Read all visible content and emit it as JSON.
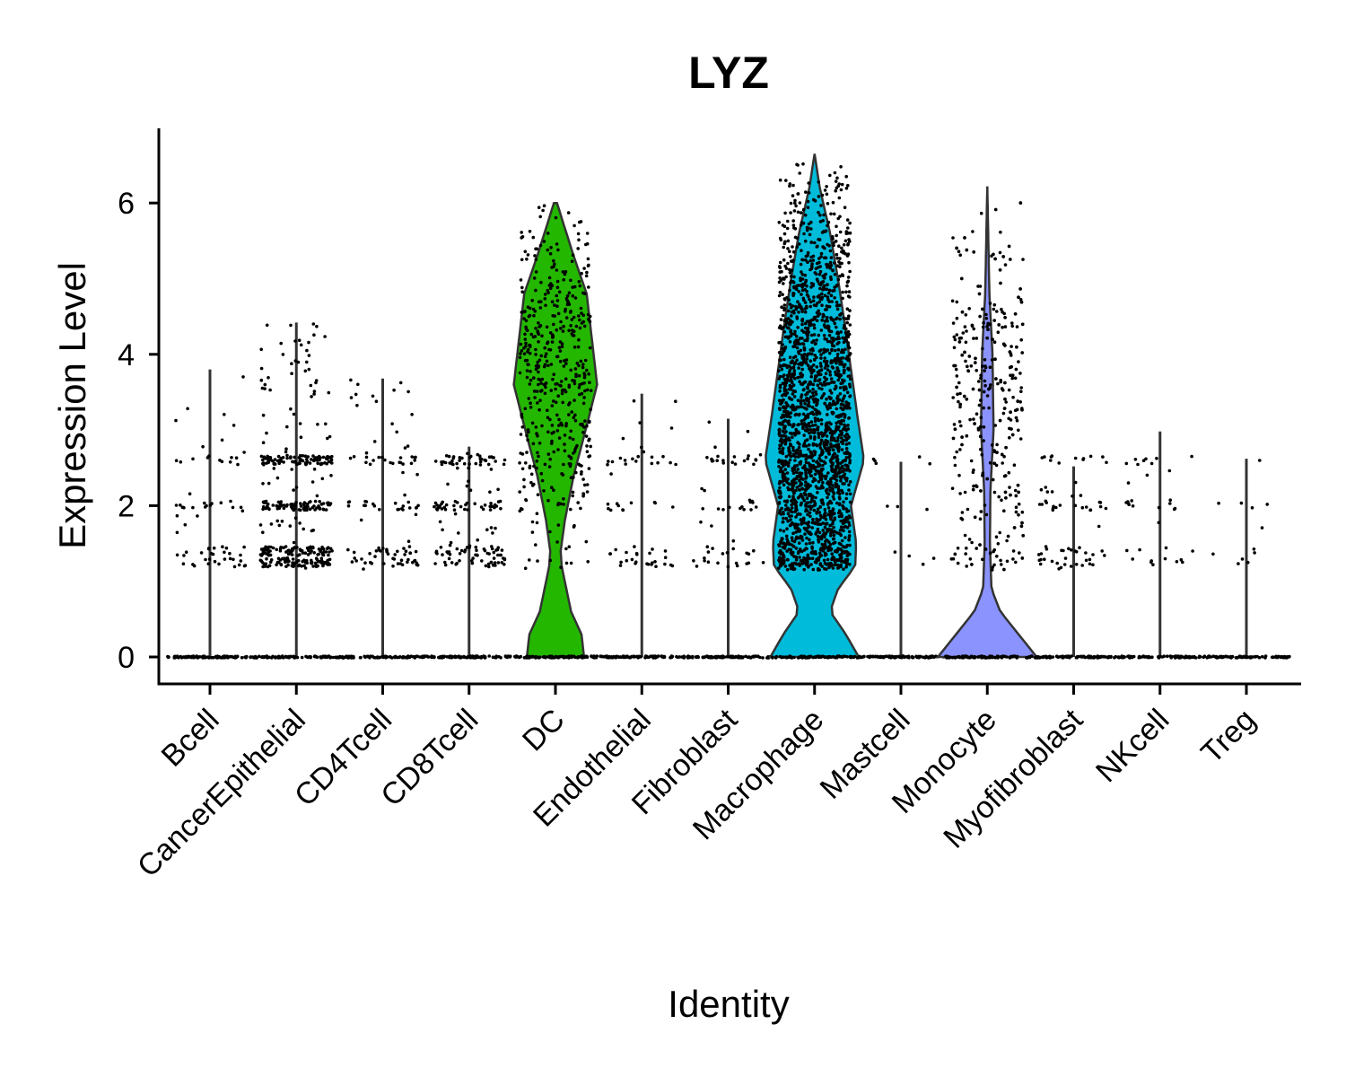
{
  "chart_data": {
    "type": "violin",
    "title": "LYZ",
    "xlabel": "Identity",
    "ylabel": "Expression Level",
    "ylim": [
      -0.35,
      7.0
    ],
    "yticks": [
      0,
      2,
      4,
      6
    ],
    "grid": false,
    "legend": "none",
    "categories": [
      "Bcell",
      "CancerEpithelial",
      "CD4Tcell",
      "CD8Tcell",
      "DC",
      "Endothelial",
      "Fibroblast",
      "Macrophage",
      "Mastcell",
      "Monocyte",
      "Myofibroblast",
      "NKcell",
      "Treg"
    ],
    "series": [
      {
        "category": "Bcell",
        "color": "#F8766D",
        "max": 3.8,
        "points_nonzero": 70
      },
      {
        "category": "CancerEpithelial",
        "color": "#E18A00",
        "max": 4.42,
        "points_nonzero": 420
      },
      {
        "category": "CD4Tcell",
        "color": "#BE9C00",
        "max": 3.68,
        "points_nonzero": 110
      },
      {
        "category": "CD8Tcell",
        "color": "#8CAB00",
        "max": 2.78,
        "points_nonzero": 160
      },
      {
        "category": "DC",
        "color": "#24B700",
        "max": 6.0,
        "points_nonzero": 480,
        "profile": [
          [
            0,
            0.55
          ],
          [
            0.3,
            0.5
          ],
          [
            0.6,
            0.3
          ],
          [
            1.2,
            0.12
          ],
          [
            1.4,
            0.1
          ],
          [
            1.8,
            0.18
          ],
          [
            2.4,
            0.35
          ],
          [
            3.0,
            0.58
          ],
          [
            3.6,
            0.8
          ],
          [
            4.2,
            0.7
          ],
          [
            4.8,
            0.6
          ],
          [
            5.3,
            0.35
          ],
          [
            5.8,
            0.12
          ],
          [
            6.0,
            0.03
          ]
        ]
      },
      {
        "category": "Endothelial",
        "color": "#00BE70",
        "max": 3.48,
        "points_nonzero": 60
      },
      {
        "category": "Fibroblast",
        "color": "#00C1AB",
        "max": 3.15,
        "points_nonzero": 60
      },
      {
        "category": "Macrophage",
        "color": "#00BBDA",
        "max": 6.65,
        "points_nonzero": 2200,
        "profile": [
          [
            0,
            0.85
          ],
          [
            0.3,
            0.6
          ],
          [
            0.6,
            0.3
          ],
          [
            0.9,
            0.45
          ],
          [
            1.2,
            0.78
          ],
          [
            1.5,
            0.8
          ],
          [
            2.0,
            0.7
          ],
          [
            2.6,
            0.95
          ],
          [
            3.2,
            0.82
          ],
          [
            3.8,
            0.7
          ],
          [
            4.4,
            0.58
          ],
          [
            5.0,
            0.45
          ],
          [
            5.6,
            0.3
          ],
          [
            6.2,
            0.1
          ],
          [
            6.65,
            0.0
          ]
        ]
      },
      {
        "category": "Mastcell",
        "color": "#00ACFC",
        "max": 2.58,
        "points_nonzero": 12
      },
      {
        "category": "Monocyte",
        "color": "#8B93FF",
        "max": 6.22,
        "points_nonzero": 430,
        "profile": [
          [
            0,
            0.95
          ],
          [
            0.3,
            0.6
          ],
          [
            0.6,
            0.25
          ],
          [
            0.9,
            0.08
          ],
          [
            1.5,
            0.05
          ],
          [
            2.2,
            0.06
          ],
          [
            3.0,
            0.12
          ],
          [
            4.0,
            0.1
          ],
          [
            4.8,
            0.04
          ],
          [
            5.5,
            0.02
          ],
          [
            6.22,
            0.0
          ]
        ]
      },
      {
        "category": "Myofibroblast",
        "color": "#D575FE",
        "max": 2.52,
        "points_nonzero": 70
      },
      {
        "category": "NKcell",
        "color": "#F962DD",
        "max": 2.98,
        "points_nonzero": 35
      },
      {
        "category": "Treg",
        "color": "#FF65AC",
        "max": 2.62,
        "points_nonzero": 12
      }
    ]
  }
}
